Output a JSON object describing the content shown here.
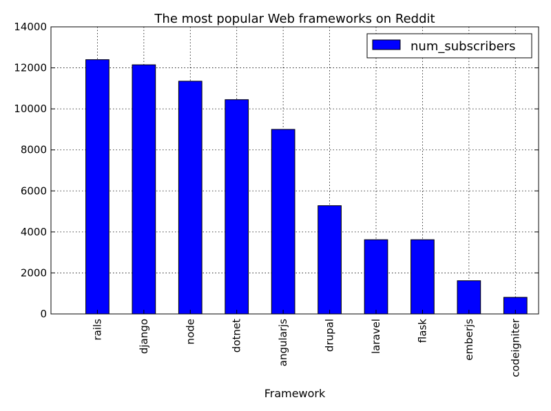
{
  "chart_data": {
    "type": "bar",
    "title": "The most popular Web frameworks on Reddit",
    "xlabel": "Framework",
    "ylabel": "",
    "categories": [
      "rails",
      "django",
      "node",
      "dotnet",
      "angularjs",
      "drupal",
      "laravel",
      "flask",
      "emberjs",
      "codeigniter"
    ],
    "series": [
      {
        "name": "num_subscribers",
        "values": [
          12400,
          12150,
          11350,
          10450,
          9000,
          5280,
          3620,
          3620,
          1620,
          810
        ]
      }
    ],
    "ylim": [
      0,
      14000
    ],
    "yticks": [
      0,
      2000,
      4000,
      6000,
      8000,
      10000,
      12000,
      14000
    ],
    "grid": true,
    "legend_position": "top-right",
    "bar_color": "#0000ff",
    "edge_color": "#000000"
  }
}
